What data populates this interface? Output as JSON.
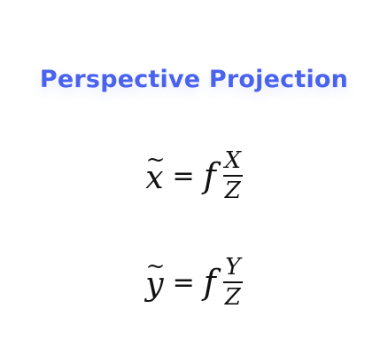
{
  "title": "Perspective Projection",
  "equations": [
    {
      "lhs_var": "x",
      "accent": "~",
      "equals": "=",
      "factor": "f",
      "numerator": "X",
      "denominator": "Z"
    },
    {
      "lhs_var": "y",
      "accent": "~",
      "equals": "=",
      "factor": "f",
      "numerator": "Y",
      "denominator": "Z"
    }
  ],
  "colors": {
    "title": "#4a63ee",
    "text": "#111111",
    "background": "#ffffff"
  }
}
